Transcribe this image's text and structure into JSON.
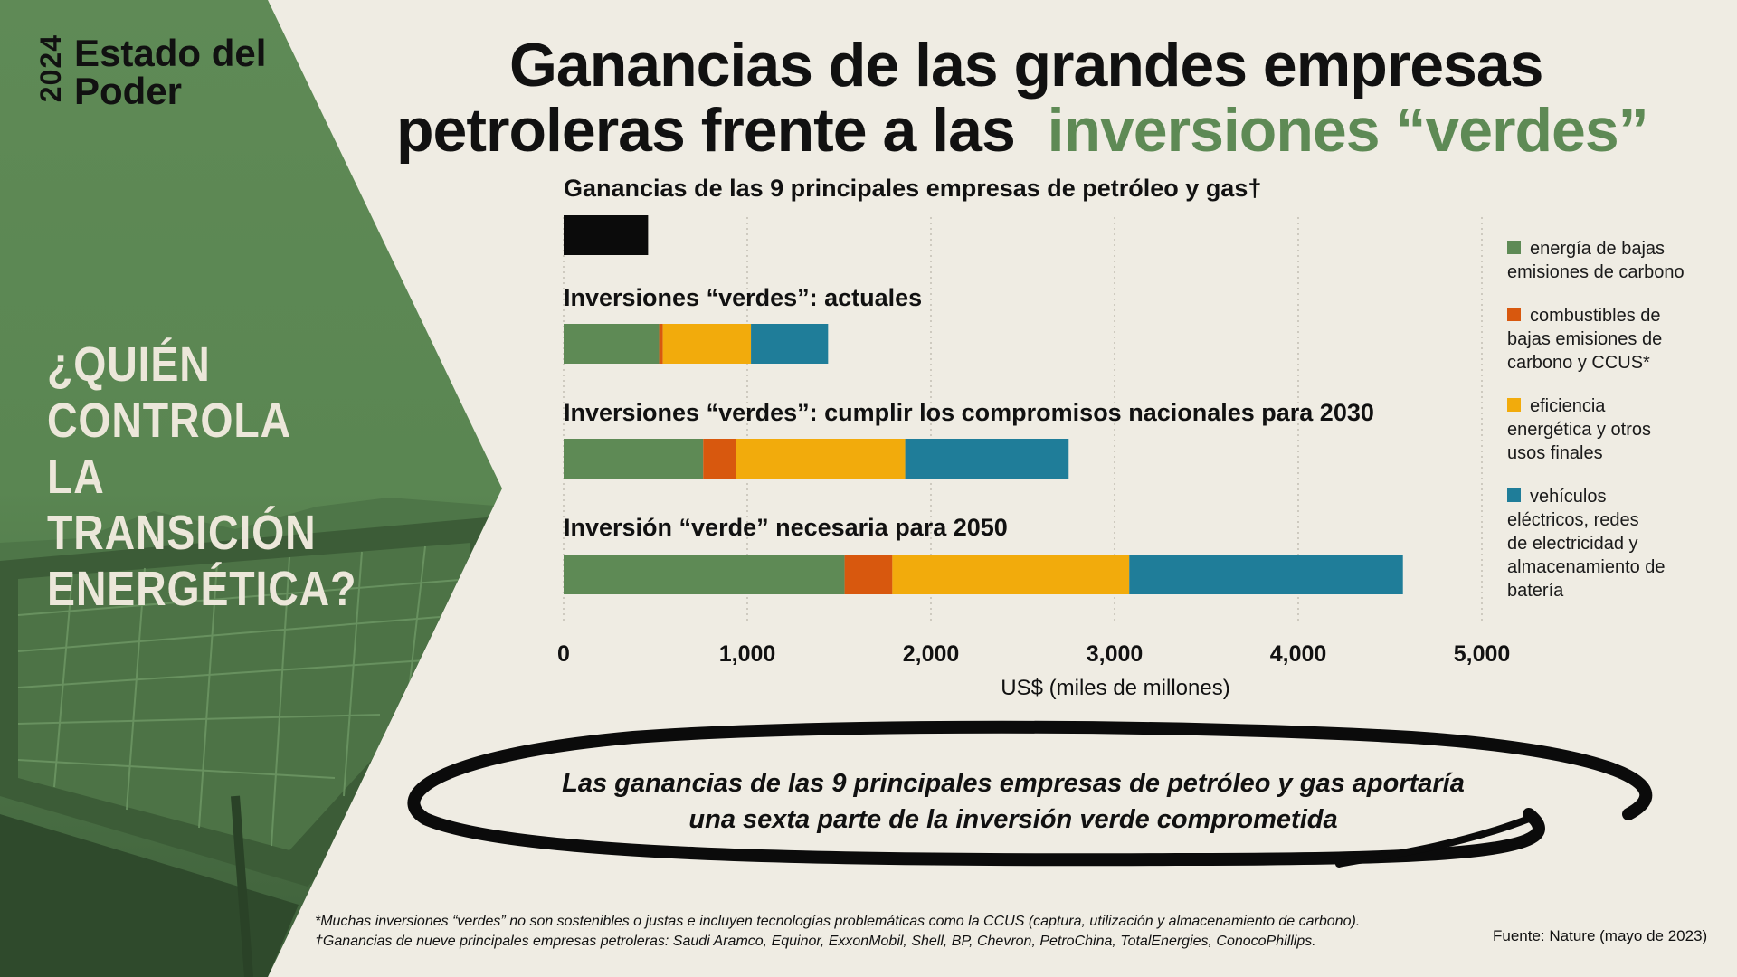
{
  "brand": {
    "year": "2024",
    "name_line1": "Estado del",
    "name_line2": "Poder"
  },
  "question": {
    "line1": "¿QUIÉN CONTROLA",
    "line2": "LA TRANSICIÓN",
    "line3": "ENERGÉTICA?"
  },
  "headline": {
    "part1": "Ganancias de las grandes empresas",
    "part2": "petroleras frente a las",
    "part3": "inversiones “verdes”"
  },
  "colors": {
    "green": "#5e8a55",
    "orange": "#d8580e",
    "yellow": "#f2ab0c",
    "blue": "#1f7d99",
    "black": "#0b0b0b",
    "panel": "#5e8a55"
  },
  "chart_data": {
    "type": "bar",
    "orientation": "horizontal",
    "stacked": true,
    "xlabel": "US$ (miles de millones)",
    "xlim": [
      0,
      5000
    ],
    "xticks": [
      0,
      1000,
      2000,
      3000,
      4000,
      5000
    ],
    "xtick_labels": [
      "0",
      "1,000",
      "2,000",
      "3,000",
      "4,000",
      "5,000"
    ],
    "categories": [
      "Ganancias de las 9 principales empresas de petróleo y gas†",
      "Inversiones “verdes”: actuales",
      "Inversiones “verdes”: cumplir los compromisos nacionales para 2030",
      "Inversión “verde” necesaria para 2050"
    ],
    "series": [
      {
        "name": "Ganancias",
        "color": "#0b0b0b",
        "values": [
          460,
          0,
          0,
          0
        ]
      },
      {
        "name": "energía de bajas emisiones de carbono",
        "color": "#5e8a55",
        "values": [
          0,
          520,
          760,
          1530
        ]
      },
      {
        "name": "combustibles de bajas emisiones de carbono y CCUS*",
        "color": "#d8580e",
        "values": [
          0,
          20,
          180,
          260
        ]
      },
      {
        "name": "eficiencia energética y otros usos finales",
        "color": "#f2ab0c",
        "values": [
          0,
          480,
          920,
          1290
        ]
      },
      {
        "name": "vehículos eléctricos, redes de electricidad y almacenamiento de batería",
        "color": "#1f7d99",
        "values": [
          0,
          420,
          890,
          1490
        ]
      }
    ],
    "legend": [
      "energía de bajas emisiones de carbono",
      "combustibles de bajas emisiones de carbono y CCUS*",
      "eficiencia energética y otros usos finales",
      "vehículos eléctricos, redes de electricidad y almacenamiento de batería"
    ],
    "legend_placement": "right",
    "grid": true
  },
  "legend_lines": [
    [
      "energía de bajas",
      "emisiones de carbono"
    ],
    [
      "combustibles de",
      "bajas emisiones de",
      "carbono y CCUS*"
    ],
    [
      "eficiencia",
      "energética y otros",
      "usos finales"
    ],
    [
      "vehículos",
      "eléctricos, redes",
      "de electricidad y",
      "almacenamiento de",
      "batería"
    ]
  ],
  "callout": {
    "line1": "Las ganancias de las 9 principales empresas de petróleo y gas aportaría",
    "line2": "una sexta parte de la inversión verde comprometida"
  },
  "footnotes": {
    "line1": "*Muchas inversiones “verdes” no son sostenibles o justas e incluyen tecnologías problemáticas como la CCUS (captura, utilización y almacenamiento de carbono).",
    "line2": "†Ganancias de nueve principales empresas petroleras: Saudi Aramco, Equinor, ExxonMobil, Shell, BP, Chevron, PetroChina, TotalEnergies, ConocoPhillips."
  },
  "source": "Fuente: Nature (mayo de 2023)"
}
